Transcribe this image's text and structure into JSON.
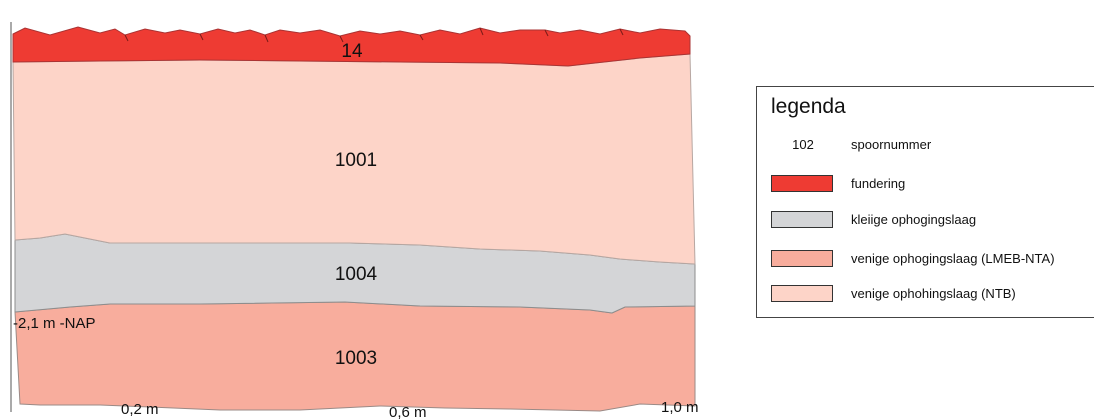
{
  "layers": [
    {
      "id": "14",
      "type": "fundering",
      "color": "#ee3b33"
    },
    {
      "id": "1001",
      "type": "venige ophohingslaag (NTB)",
      "color": "#fdd4c8"
    },
    {
      "id": "1004",
      "type": "kleiige ophogingslaag",
      "color": "#d4d5d7"
    },
    {
      "id": "1003",
      "type": "venige ophogingslaag (LMEB-NTA)",
      "color": "#f8ad9d"
    }
  ],
  "depth_marker": "-2,1 m -NAP",
  "scale": [
    "0,2 m",
    "0,6 m",
    "1,0 m"
  ],
  "legend": {
    "title": "legenda",
    "items": [
      {
        "symbol": "102",
        "label": "spoornummer"
      },
      {
        "color": "#ee3b33",
        "label": "fundering"
      },
      {
        "color": "#d4d5d7",
        "label": "kleiige ophogingslaag"
      },
      {
        "color": "#f8ad9d",
        "label": "venige ophogingslaag (LMEB-NTA)"
      },
      {
        "color": "#fdd4c8",
        "label": "venige ophohingslaag (NTB)"
      }
    ]
  }
}
